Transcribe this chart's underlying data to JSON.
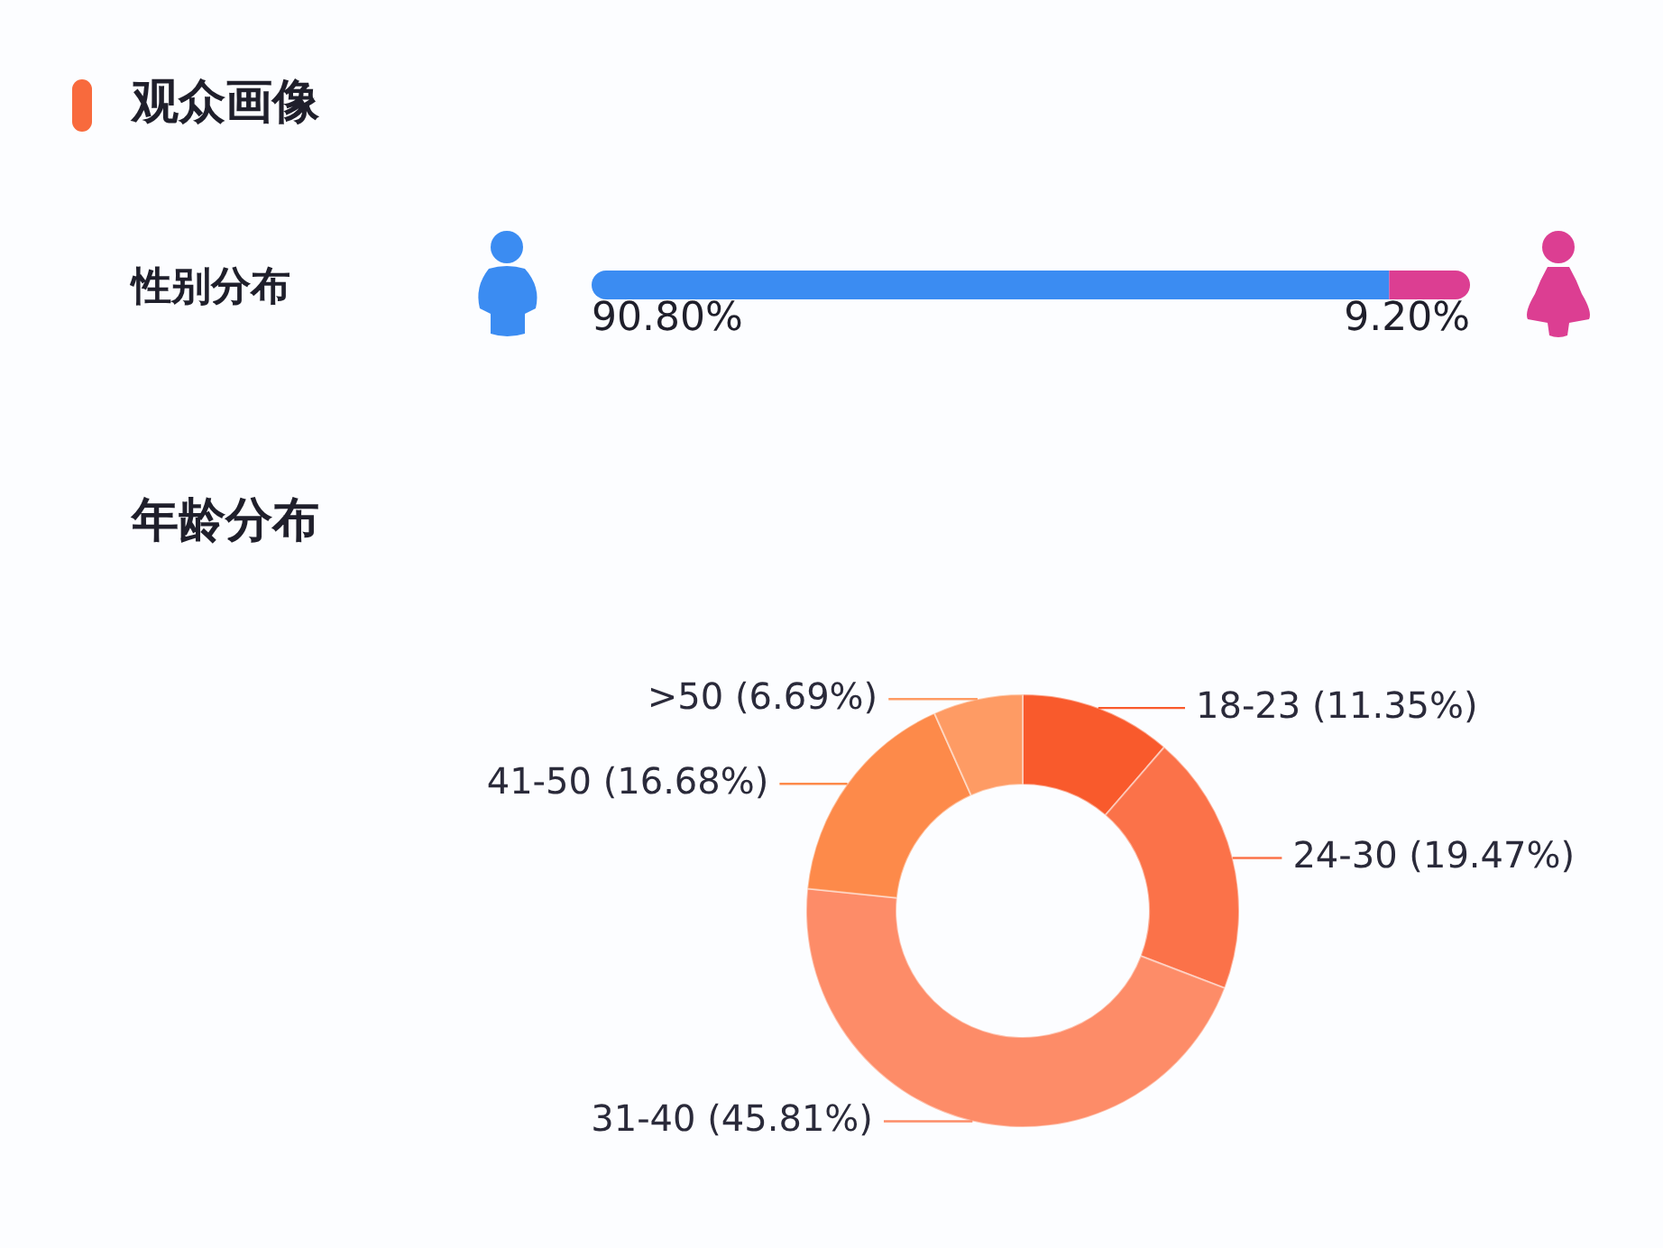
{
  "chart_data": [
    {
      "type": "bar",
      "title": "观众画像",
      "orientation": "horizontal",
      "stacked": true,
      "categories": [
        "性别分布"
      ],
      "series": [
        {
          "color": "#3b8cf2",
          "values": [
            90.8
          ],
          "value_labels": [
            "90.80%"
          ]
        },
        {
          "color": "#dc3e92",
          "values": [
            9.2
          ],
          "value_labels": [
            "9.20%"
          ]
        }
      ]
    },
    {
      "type": "donut",
      "title": "年龄分布",
      "categories": [
        "18-23",
        "24-30",
        "31-40",
        "41-50",
        ">50"
      ],
      "values": [
        11.35,
        19.47,
        45.81,
        16.68,
        6.69
      ],
      "colors": [
        "#f95a2c",
        "#fb7249",
        "#fd8c68",
        "#fd8a4a",
        "#fe9b64"
      ],
      "value_labels": [
        "(11.35%)",
        "(19.47%)",
        "(45.81%)",
        "(16.68%)",
        "(6.69%)"
      ]
    }
  ]
}
